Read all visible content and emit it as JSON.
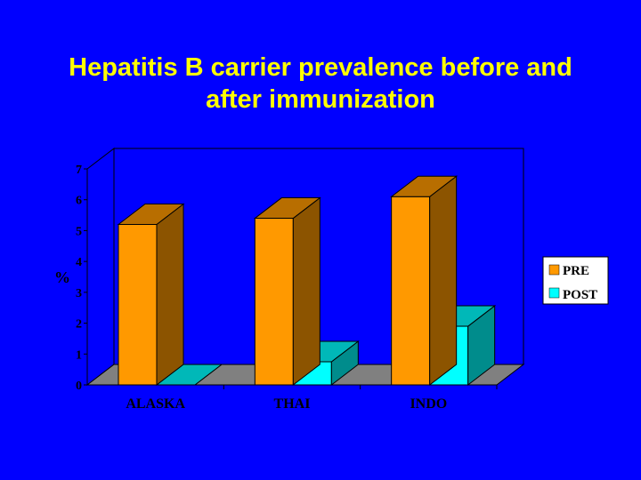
{
  "slide": {
    "title_lines": [
      "Hepatitis B carrier prevalence before and",
      "after immunization"
    ]
  },
  "colors": {
    "background": "#0000ff",
    "title": "#ffff00",
    "pre": "#ff9900",
    "post": "#00ffff"
  },
  "chart_data": {
    "type": "bar",
    "title": "",
    "xlabel": "",
    "ylabel": "%",
    "categories": [
      "ALASKA",
      "THAI",
      "INDO"
    ],
    "series": [
      {
        "name": "PRE",
        "values": [
          5.2,
          5.4,
          6.1
        ]
      },
      {
        "name": "POST",
        "values": [
          0.0,
          0.75,
          1.9
        ]
      }
    ],
    "ylim": [
      0,
      7
    ],
    "yticks": [
      "0",
      "1",
      "2",
      "3",
      "4",
      "5",
      "6",
      "7"
    ],
    "legend": "right",
    "grid": false,
    "three_d": true
  }
}
